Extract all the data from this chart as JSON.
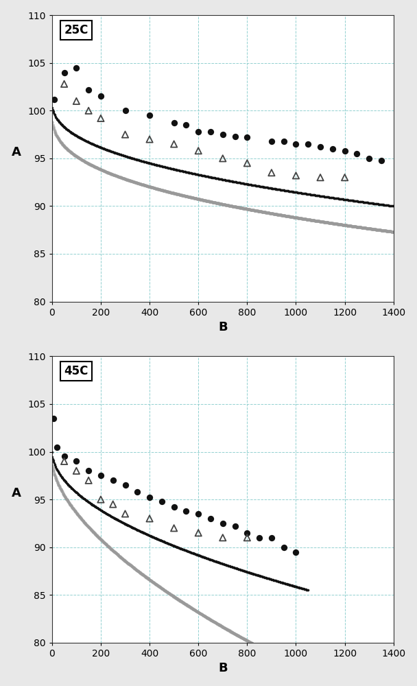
{
  "top_label": "25C",
  "bottom_label": "45C",
  "xlabel": "B",
  "ylabel": "A",
  "ylim": [
    80,
    110
  ],
  "xlim": [
    0,
    1400
  ],
  "yticks": [
    80,
    85,
    90,
    95,
    100,
    105,
    110
  ],
  "xticks": [
    0,
    200,
    400,
    600,
    800,
    1000,
    1200,
    1400
  ],
  "top_dots": [
    [
      10,
      101.2
    ],
    [
      50,
      104.0
    ],
    [
      100,
      104.5
    ],
    [
      150,
      102.2
    ],
    [
      200,
      101.5
    ],
    [
      300,
      100.0
    ],
    [
      400,
      99.5
    ],
    [
      500,
      98.7
    ],
    [
      550,
      98.5
    ],
    [
      600,
      97.8
    ],
    [
      650,
      97.8
    ],
    [
      700,
      97.5
    ],
    [
      750,
      97.3
    ],
    [
      800,
      97.2
    ],
    [
      900,
      96.8
    ],
    [
      950,
      96.8
    ],
    [
      1000,
      96.5
    ],
    [
      1050,
      96.5
    ],
    [
      1100,
      96.2
    ],
    [
      1150,
      96.0
    ],
    [
      1200,
      95.8
    ],
    [
      1250,
      95.5
    ],
    [
      1300,
      95.0
    ],
    [
      1350,
      94.8
    ]
  ],
  "top_triangles": [
    [
      50,
      102.8
    ],
    [
      100,
      101.0
    ],
    [
      150,
      100.0
    ],
    [
      200,
      99.2
    ],
    [
      300,
      97.5
    ],
    [
      400,
      97.0
    ],
    [
      500,
      96.5
    ],
    [
      600,
      95.8
    ],
    [
      700,
      95.0
    ],
    [
      800,
      94.5
    ],
    [
      900,
      93.5
    ],
    [
      1000,
      93.2
    ],
    [
      1100,
      93.0
    ],
    [
      1200,
      93.0
    ]
  ],
  "bottom_dots": [
    [
      5,
      103.5
    ],
    [
      20,
      100.5
    ],
    [
      50,
      99.5
    ],
    [
      100,
      99.0
    ],
    [
      150,
      98.0
    ],
    [
      200,
      97.5
    ],
    [
      250,
      97.0
    ],
    [
      300,
      96.5
    ],
    [
      350,
      95.8
    ],
    [
      400,
      95.2
    ],
    [
      450,
      94.8
    ],
    [
      500,
      94.2
    ],
    [
      550,
      93.8
    ],
    [
      600,
      93.5
    ],
    [
      650,
      93.0
    ],
    [
      700,
      92.5
    ],
    [
      750,
      92.2
    ],
    [
      800,
      91.5
    ],
    [
      850,
      91.0
    ],
    [
      900,
      91.0
    ],
    [
      950,
      90.0
    ],
    [
      1000,
      89.5
    ]
  ],
  "bottom_triangles": [
    [
      50,
      99.0
    ],
    [
      100,
      98.0
    ],
    [
      150,
      97.0
    ],
    [
      200,
      95.0
    ],
    [
      250,
      94.5
    ],
    [
      300,
      93.5
    ],
    [
      400,
      93.0
    ],
    [
      500,
      92.0
    ],
    [
      600,
      91.5
    ],
    [
      700,
      91.0
    ],
    [
      800,
      91.0
    ]
  ],
  "background_color": "#ffffff",
  "grid_color": "#88cccc",
  "dot_color": "#111111",
  "triangle_color": "#444444",
  "black_curve_color": "#111111",
  "gray_curve_color": "#999999"
}
